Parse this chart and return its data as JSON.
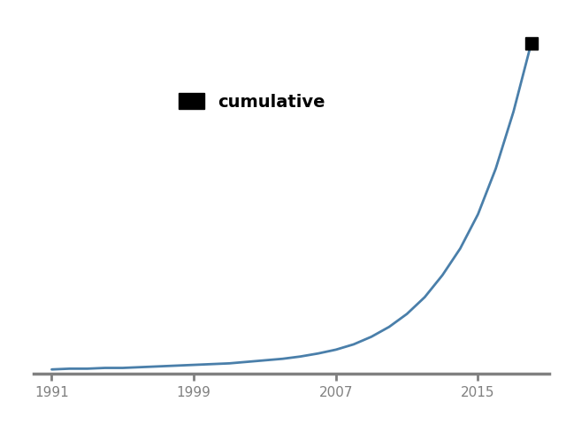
{
  "years": [
    1991,
    1992,
    1993,
    1994,
    1995,
    1996,
    1997,
    1998,
    1999,
    2000,
    2001,
    2002,
    2003,
    2004,
    2005,
    2006,
    2007,
    2008,
    2009,
    2010,
    2011,
    2012,
    2013,
    2014,
    2015,
    2016,
    2017,
    2018
  ],
  "counts": [
    1,
    2,
    2,
    3,
    3,
    4,
    5,
    6,
    7,
    8,
    9,
    11,
    13,
    15,
    18,
    22,
    27,
    34,
    44,
    57,
    74,
    96,
    125,
    160,
    205,
    265,
    340,
    430
  ],
  "line_color": "#4a7faa",
  "marker_color": "#000000",
  "bg_color": "#ffffff",
  "axis_color": "#808080",
  "legend_label": "cumulative",
  "legend_facecolor": "#000000",
  "xlim": [
    1990,
    2019
  ],
  "ylim": [
    -5,
    470
  ],
  "xticks": [
    1991,
    1999,
    2007,
    2015
  ],
  "axis_linewidth": 2.5,
  "line_width": 2.0,
  "marker_size": 10
}
